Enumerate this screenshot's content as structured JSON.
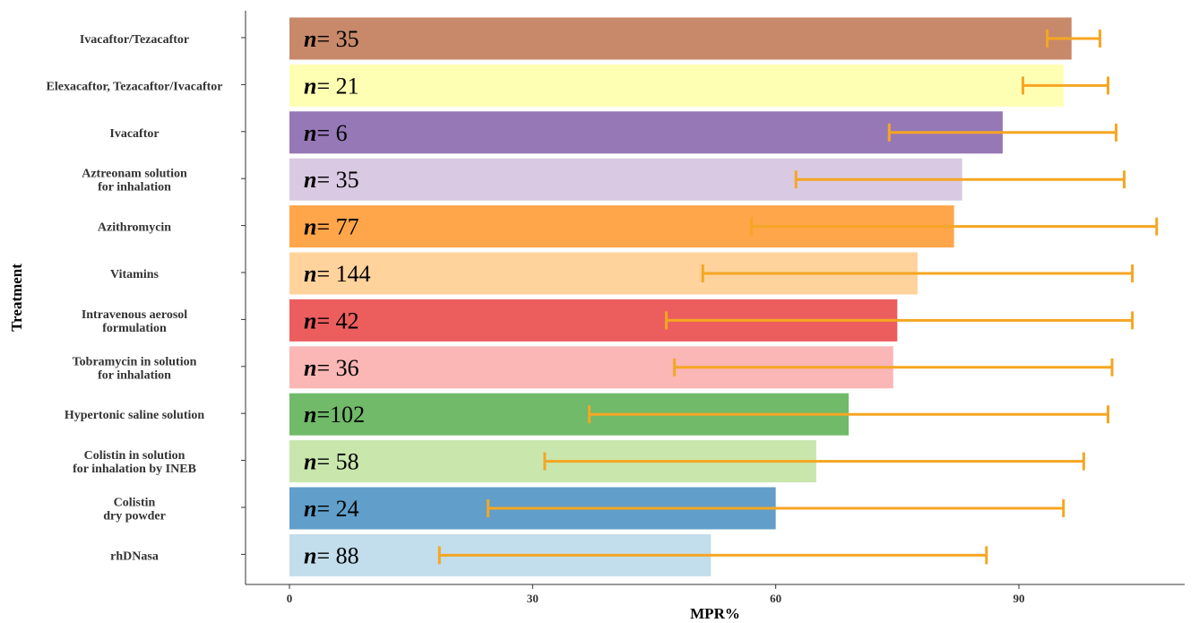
{
  "chart_data": {
    "type": "bar",
    "orientation": "horizontal",
    "xlabel": "MPR%",
    "ylabel": "Treatment",
    "xlim": [
      0,
      110
    ],
    "xticks": [
      0,
      30,
      60,
      90
    ],
    "grid": false,
    "legend": "none",
    "n_prefix": "n",
    "categories": [
      {
        "lines": [
          "Ivacaftor/Tezacaftor"
        ],
        "value": 96.5,
        "err_low": 93.5,
        "err_high": 100,
        "n_text": "= 35",
        "color": "#C8896A"
      },
      {
        "lines": [
          "Elexacaftor, Tezacaftor/Ivacaftor"
        ],
        "value": 95.5,
        "err_low": 90.5,
        "err_high": 101,
        "n_text": "= 21",
        "color": "#FFFFB3"
      },
      {
        "lines": [
          "Ivacaftor"
        ],
        "value": 88,
        "err_low": 74,
        "err_high": 102,
        "n_text": "= 6",
        "color": "#9778B6"
      },
      {
        "lines": [
          "Aztreonam solution",
          "for inhalation"
        ],
        "value": 83,
        "err_low": 62.5,
        "err_high": 103,
        "n_text": "= 35",
        "color": "#D9C9E2"
      },
      {
        "lines": [
          "Azithromycin"
        ],
        "value": 82,
        "err_low": 57,
        "err_high": 107,
        "n_text": "= 77",
        "color": "#FFA54A"
      },
      {
        "lines": [
          "Vitamins"
        ],
        "value": 77.5,
        "err_low": 51,
        "err_high": 104,
        "n_text": "= 144",
        "color": "#FFD39B"
      },
      {
        "lines": [
          "Intravenous aerosol",
          "formulation"
        ],
        "value": 75,
        "err_low": 46.5,
        "err_high": 104,
        "n_text": "= 42",
        "color": "#EC5E5E"
      },
      {
        "lines": [
          "Tobramycin in solution",
          "for inhalation"
        ],
        "value": 74.5,
        "err_low": 47.5,
        "err_high": 101.5,
        "n_text": "= 36",
        "color": "#FBB6B6"
      },
      {
        "lines": [
          "Hypertonic saline solution"
        ],
        "value": 69,
        "err_low": 37,
        "err_high": 101,
        "n_text": "=102",
        "color": "#70BA69"
      },
      {
        "lines": [
          "Colistin in solution",
          "for inhalation by INEB"
        ],
        "value": 65,
        "err_low": 31.5,
        "err_high": 98,
        "n_text": "= 58",
        "color": "#C9E7AD"
      },
      {
        "lines": [
          "Colistin",
          "dry powder"
        ],
        "value": 60,
        "err_low": 24.5,
        "err_high": 95.5,
        "n_text": "= 24",
        "color": "#619FCA"
      },
      {
        "lines": [
          "rhDNasa"
        ],
        "value": 52,
        "err_low": 18.5,
        "err_high": 86,
        "n_text": "= 88",
        "color": "#C2DDEC"
      }
    ],
    "error_bar_color": "#F5A623",
    "axis_color": "#333333"
  }
}
